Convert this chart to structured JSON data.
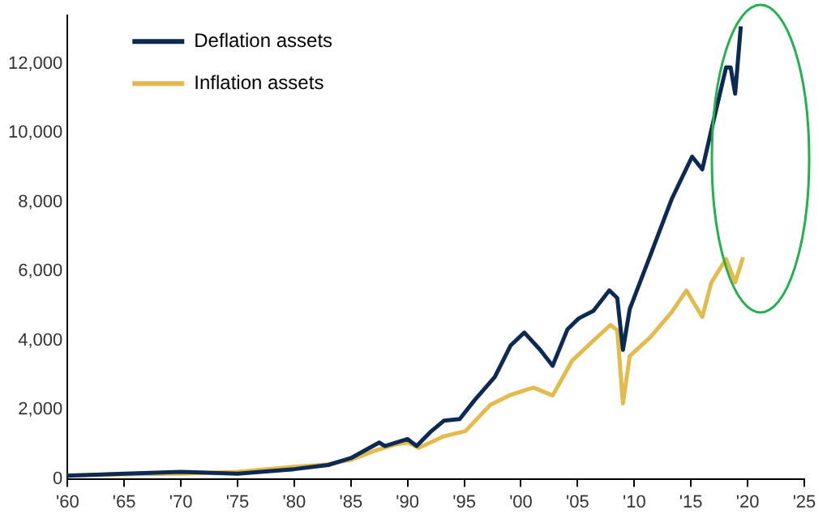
{
  "chart_data": {
    "type": "line",
    "xlim": [
      1960,
      2025
    ],
    "xticks": [
      {
        "value": 1960,
        "label": "'60"
      },
      {
        "value": 1965,
        "label": "'65"
      },
      {
        "value": 1970,
        "label": "'70"
      },
      {
        "value": 1975,
        "label": "'75"
      },
      {
        "value": 1980,
        "label": "'80"
      },
      {
        "value": 1985,
        "label": "'85"
      },
      {
        "value": 1990,
        "label": "'90"
      },
      {
        "value": 1995,
        "label": "'95"
      },
      {
        "value": 2000,
        "label": "'00"
      },
      {
        "value": 2005,
        "label": "'05"
      },
      {
        "value": 2010,
        "label": "'10"
      },
      {
        "value": 2015,
        "label": "'15"
      },
      {
        "value": 2020,
        "label": "'20"
      },
      {
        "value": 2025,
        "label": "'25"
      }
    ],
    "ylim": [
      0,
      13400
    ],
    "yticks": [
      0,
      {
        "value": 2000,
        "label": "2,000"
      },
      {
        "value": 4000,
        "label": "4,000"
      },
      {
        "value": 6000,
        "label": "6,000"
      },
      {
        "value": 8000,
        "label": "8,000"
      },
      {
        "value": 10000,
        "label": "10,000"
      },
      {
        "value": 12000,
        "label": "12,000"
      }
    ],
    "grid": false,
    "legend": "top left",
    "marker": "none",
    "line_style": "solid",
    "series": [
      {
        "name": "Deflation assets",
        "color": "#0c2a54",
        "x": [
          1960,
          1965,
          1970,
          1975,
          1980,
          1983,
          1985,
          1987.5,
          1988,
          1990,
          1990.8,
          1992,
          1993.2,
          1994.6,
          1995.9,
          1997.7,
          1999.1,
          2000.3,
          2001.7,
          2002.8,
          2004.1,
          2005.1,
          2006.4,
          2007.8,
          2008.5,
          2009.0,
          2009.6,
          2011.4,
          2013.3,
          2015.1,
          2016.0,
          2016.8,
          2018.1,
          2018.5,
          2018.9,
          2019.4
        ],
        "values": [
          90,
          150,
          200,
          150,
          280,
          400,
          600,
          1050,
          950,
          1150,
          950,
          1350,
          1680,
          1730,
          2270,
          2950,
          3860,
          4230,
          3730,
          3270,
          4320,
          4640,
          4860,
          5450,
          5230,
          3730,
          4910,
          6450,
          8090,
          9320,
          8950,
          10090,
          11900,
          11900,
          11140,
          13090
        ]
      },
      {
        "name": "Inflation assets",
        "color": "#e3bb4c",
        "x": [
          1960,
          1965,
          1970,
          1975,
          1980,
          1983,
          1985,
          1987,
          1989,
          1990,
          1991,
          1993.2,
          1995.1,
          1997.3,
          1999.1,
          2001.1,
          2002.8,
          2004.5,
          2006.4,
          2007.9,
          2008.5,
          2009.0,
          2009.6,
          2011.4,
          2013.3,
          2014.6,
          2016.0,
          2016.8,
          2018.1,
          2018.9,
          2019.6
        ],
        "values": [
          100,
          130,
          150,
          200,
          350,
          420,
          550,
          800,
          1000,
          1050,
          900,
          1230,
          1380,
          2140,
          2430,
          2640,
          2410,
          3410,
          4000,
          4450,
          4300,
          2180,
          3550,
          4090,
          4820,
          5450,
          4680,
          5680,
          6360,
          5680,
          6410
        ]
      }
    ]
  }
}
